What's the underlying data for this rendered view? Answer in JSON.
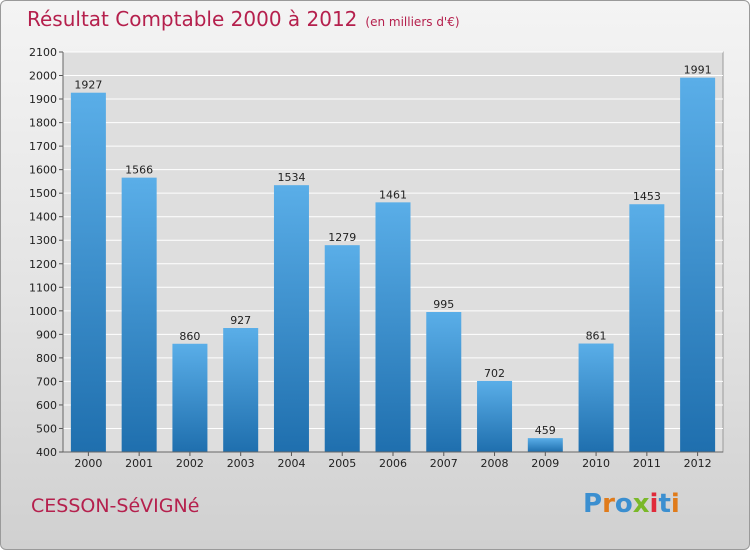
{
  "title": "Résultat Comptable 2000 à 2012",
  "title_unit": "(en milliers d'€)",
  "city": "CESSON-SéVIGNé",
  "logo": {
    "text": "Proxiti",
    "letters": [
      "P",
      "r",
      "o",
      "x",
      "i",
      "t",
      "i"
    ],
    "colors": [
      "#3b8fd0",
      "#e07b1a",
      "#3b8fd0",
      "#7ab829",
      "#e02a3a",
      "#3b8fd0",
      "#e07b1a"
    ]
  },
  "colors": {
    "title": "#b5204d",
    "bar_light": "#5aaee8",
    "bar_dark": "#1f6fae"
  },
  "chart_data": {
    "type": "bar",
    "title": "Résultat Comptable 2000 à 2012",
    "xlabel": "",
    "ylabel": "",
    "categories": [
      "2000",
      "2001",
      "2002",
      "2003",
      "2004",
      "2005",
      "2006",
      "2007",
      "2008",
      "2009",
      "2010",
      "2011",
      "2012"
    ],
    "values": [
      1927,
      1566,
      860,
      927,
      1534,
      1279,
      1461,
      995,
      702,
      459,
      861,
      1453,
      1991
    ],
    "ylim": [
      400,
      2100
    ],
    "yticks": [
      "400",
      "500",
      "600",
      "700",
      "800",
      "900",
      "1000",
      "1100",
      "1200",
      "1300",
      "1400",
      "1500",
      "1600",
      "1700",
      "1800",
      "1900",
      "2000",
      "2100"
    ],
    "grid": true
  }
}
